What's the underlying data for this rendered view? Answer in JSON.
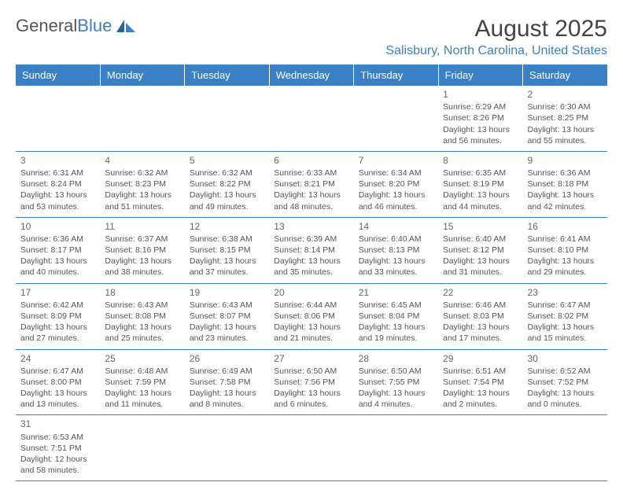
{
  "logo": {
    "text1": "General",
    "text2": "Blue"
  },
  "title": "August 2025",
  "location": "Salisbury, North Carolina, United States",
  "colors": {
    "accent": "#3b7fc4",
    "text": "#555555",
    "bg": "#ffffff"
  },
  "weekdays": [
    "Sunday",
    "Monday",
    "Tuesday",
    "Wednesday",
    "Thursday",
    "Friday",
    "Saturday"
  ],
  "weeks": [
    [
      null,
      null,
      null,
      null,
      null,
      {
        "d": "1",
        "sr": "6:29 AM",
        "ss": "8:26 PM",
        "dl": "13 hours and 56 minutes."
      },
      {
        "d": "2",
        "sr": "6:30 AM",
        "ss": "8:25 PM",
        "dl": "13 hours and 55 minutes."
      }
    ],
    [
      {
        "d": "3",
        "sr": "6:31 AM",
        "ss": "8:24 PM",
        "dl": "13 hours and 53 minutes."
      },
      {
        "d": "4",
        "sr": "6:32 AM",
        "ss": "8:23 PM",
        "dl": "13 hours and 51 minutes."
      },
      {
        "d": "5",
        "sr": "6:32 AM",
        "ss": "8:22 PM",
        "dl": "13 hours and 49 minutes."
      },
      {
        "d": "6",
        "sr": "6:33 AM",
        "ss": "8:21 PM",
        "dl": "13 hours and 48 minutes."
      },
      {
        "d": "7",
        "sr": "6:34 AM",
        "ss": "8:20 PM",
        "dl": "13 hours and 46 minutes."
      },
      {
        "d": "8",
        "sr": "6:35 AM",
        "ss": "8:19 PM",
        "dl": "13 hours and 44 minutes."
      },
      {
        "d": "9",
        "sr": "6:36 AM",
        "ss": "8:18 PM",
        "dl": "13 hours and 42 minutes."
      }
    ],
    [
      {
        "d": "10",
        "sr": "6:36 AM",
        "ss": "8:17 PM",
        "dl": "13 hours and 40 minutes."
      },
      {
        "d": "11",
        "sr": "6:37 AM",
        "ss": "8:16 PM",
        "dl": "13 hours and 38 minutes."
      },
      {
        "d": "12",
        "sr": "6:38 AM",
        "ss": "8:15 PM",
        "dl": "13 hours and 37 minutes."
      },
      {
        "d": "13",
        "sr": "6:39 AM",
        "ss": "8:14 PM",
        "dl": "13 hours and 35 minutes."
      },
      {
        "d": "14",
        "sr": "6:40 AM",
        "ss": "8:13 PM",
        "dl": "13 hours and 33 minutes."
      },
      {
        "d": "15",
        "sr": "6:40 AM",
        "ss": "8:12 PM",
        "dl": "13 hours and 31 minutes."
      },
      {
        "d": "16",
        "sr": "6:41 AM",
        "ss": "8:10 PM",
        "dl": "13 hours and 29 minutes."
      }
    ],
    [
      {
        "d": "17",
        "sr": "6:42 AM",
        "ss": "8:09 PM",
        "dl": "13 hours and 27 minutes."
      },
      {
        "d": "18",
        "sr": "6:43 AM",
        "ss": "8:08 PM",
        "dl": "13 hours and 25 minutes."
      },
      {
        "d": "19",
        "sr": "6:43 AM",
        "ss": "8:07 PM",
        "dl": "13 hours and 23 minutes."
      },
      {
        "d": "20",
        "sr": "6:44 AM",
        "ss": "8:06 PM",
        "dl": "13 hours and 21 minutes."
      },
      {
        "d": "21",
        "sr": "6:45 AM",
        "ss": "8:04 PM",
        "dl": "13 hours and 19 minutes."
      },
      {
        "d": "22",
        "sr": "6:46 AM",
        "ss": "8:03 PM",
        "dl": "13 hours and 17 minutes."
      },
      {
        "d": "23",
        "sr": "6:47 AM",
        "ss": "8:02 PM",
        "dl": "13 hours and 15 minutes."
      }
    ],
    [
      {
        "d": "24",
        "sr": "6:47 AM",
        "ss": "8:00 PM",
        "dl": "13 hours and 13 minutes."
      },
      {
        "d": "25",
        "sr": "6:48 AM",
        "ss": "7:59 PM",
        "dl": "13 hours and 11 minutes."
      },
      {
        "d": "26",
        "sr": "6:49 AM",
        "ss": "7:58 PM",
        "dl": "13 hours and 8 minutes."
      },
      {
        "d": "27",
        "sr": "6:50 AM",
        "ss": "7:56 PM",
        "dl": "13 hours and 6 minutes."
      },
      {
        "d": "28",
        "sr": "6:50 AM",
        "ss": "7:55 PM",
        "dl": "13 hours and 4 minutes."
      },
      {
        "d": "29",
        "sr": "6:51 AM",
        "ss": "7:54 PM",
        "dl": "13 hours and 2 minutes."
      },
      {
        "d": "30",
        "sr": "6:52 AM",
        "ss": "7:52 PM",
        "dl": "13 hours and 0 minutes."
      }
    ],
    [
      {
        "d": "31",
        "sr": "6:53 AM",
        "ss": "7:51 PM",
        "dl": "12 hours and 58 minutes."
      },
      null,
      null,
      null,
      null,
      null,
      null
    ]
  ],
  "labels": {
    "sunrise": "Sunrise: ",
    "sunset": "Sunset: ",
    "daylight": "Daylight: "
  }
}
